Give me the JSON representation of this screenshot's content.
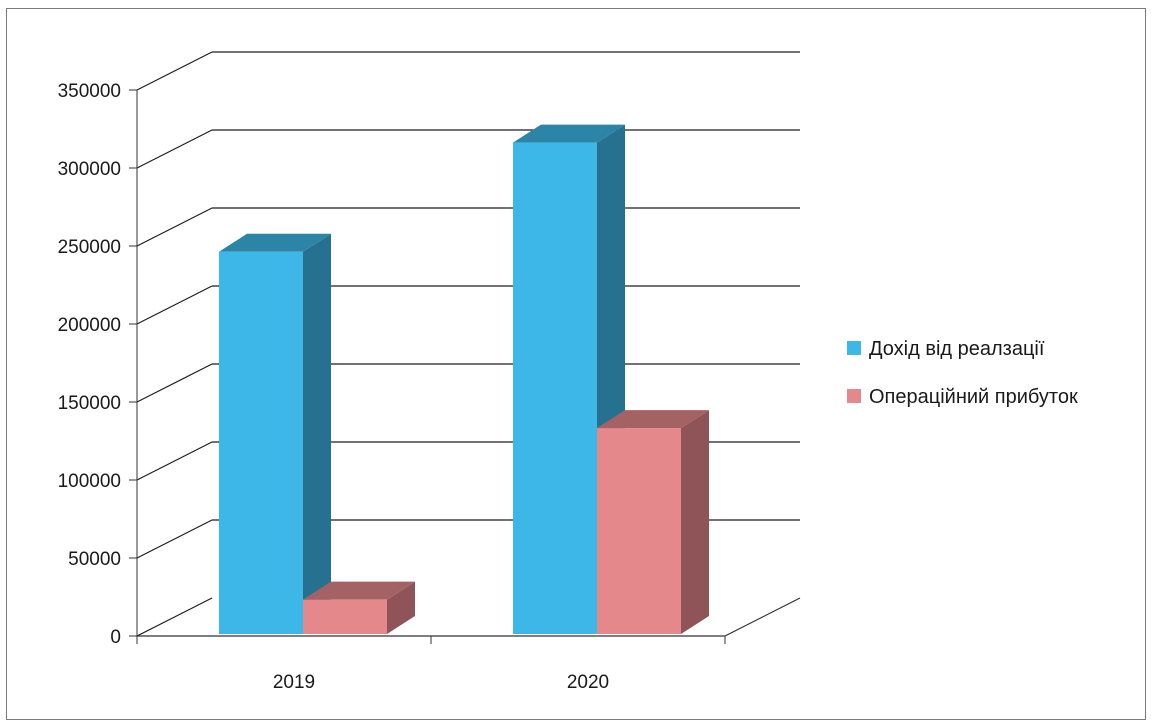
{
  "chart_data": {
    "type": "bar",
    "categories": [
      "2019",
      "2020"
    ],
    "series": [
      {
        "name": "Дохід від реалзації",
        "values": [
          245000,
          315000
        ],
        "color": "#3db7e8"
      },
      {
        "name": "Операційний прибуток",
        "values": [
          22000,
          132000
        ],
        "color": "#e5888c"
      }
    ],
    "ylim": [
      0,
      350000
    ],
    "y_ticks": [
      "0",
      "50000",
      "100000",
      "150000",
      "200000",
      "250000",
      "300000",
      "350000"
    ],
    "title": "",
    "xlabel": "",
    "ylabel": "",
    "grid": true,
    "legend_position": "right",
    "style": "3d-clustered-column"
  }
}
